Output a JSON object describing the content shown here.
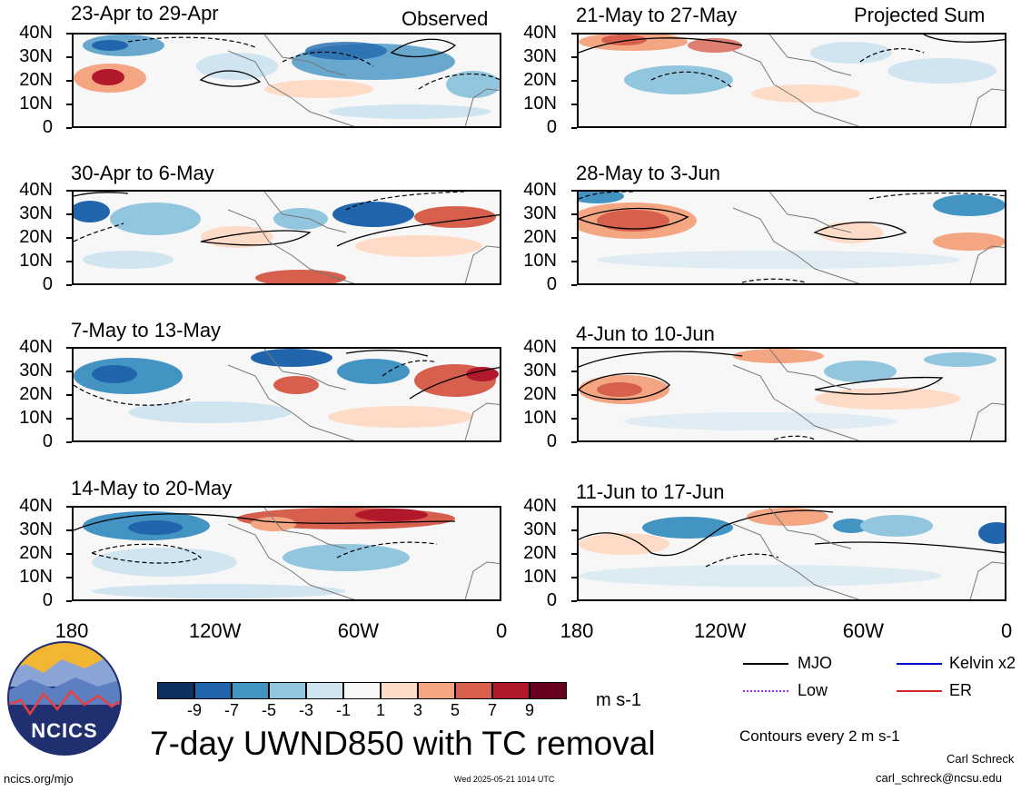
{
  "header": {
    "left_tag": "Observed",
    "right_tag": "Projected Sum"
  },
  "panels_left": [
    {
      "title": "23-Apr to 29-Apr"
    },
    {
      "title": "30-Apr to 6-May"
    },
    {
      "title": "7-May to 13-May"
    },
    {
      "title": "14-May to 20-May"
    }
  ],
  "panels_right": [
    {
      "title": "21-May to 27-May"
    },
    {
      "title": "28-May to 3-Jun"
    },
    {
      "title": "4-Jun to 10-Jun"
    },
    {
      "title": "11-Jun to 17-Jun"
    }
  ],
  "y_ticks": [
    "40N",
    "30N",
    "20N",
    "10N",
    "0"
  ],
  "x_ticks": [
    "180",
    "120W",
    "60W",
    "0"
  ],
  "colorbar": {
    "labels": [
      "-9",
      "-7",
      "-5",
      "-3",
      "-1",
      "1",
      "3",
      "5",
      "7",
      "9"
    ],
    "colors": [
      "#0b2f5e",
      "#2166ac",
      "#4393c3",
      "#92c5de",
      "#d1e5f0",
      "#f7f7f7",
      "#fddbc7",
      "#f4a582",
      "#d6604d",
      "#b2182b",
      "#67001f"
    ],
    "units": "m s-1"
  },
  "legend": {
    "items": [
      {
        "label": "MJO",
        "color": "#000000"
      },
      {
        "label": "Kelvin x2",
        "color": "#0000cc"
      },
      {
        "label": "Low",
        "color": "#9b30d9"
      },
      {
        "label": "ER",
        "color": "#d62728"
      }
    ],
    "contours_note": "Contours every 2 m s-1"
  },
  "main_title": "7-day UWND850 with TC removal",
  "logo": {
    "text": "NCICS"
  },
  "footer": {
    "url": "ncics.org/mjo",
    "timestamp": "Wed 2025-05-21 1014 UTC",
    "author": "Carl Schreck",
    "email": "carl_schreck@ncsu.edu"
  }
}
